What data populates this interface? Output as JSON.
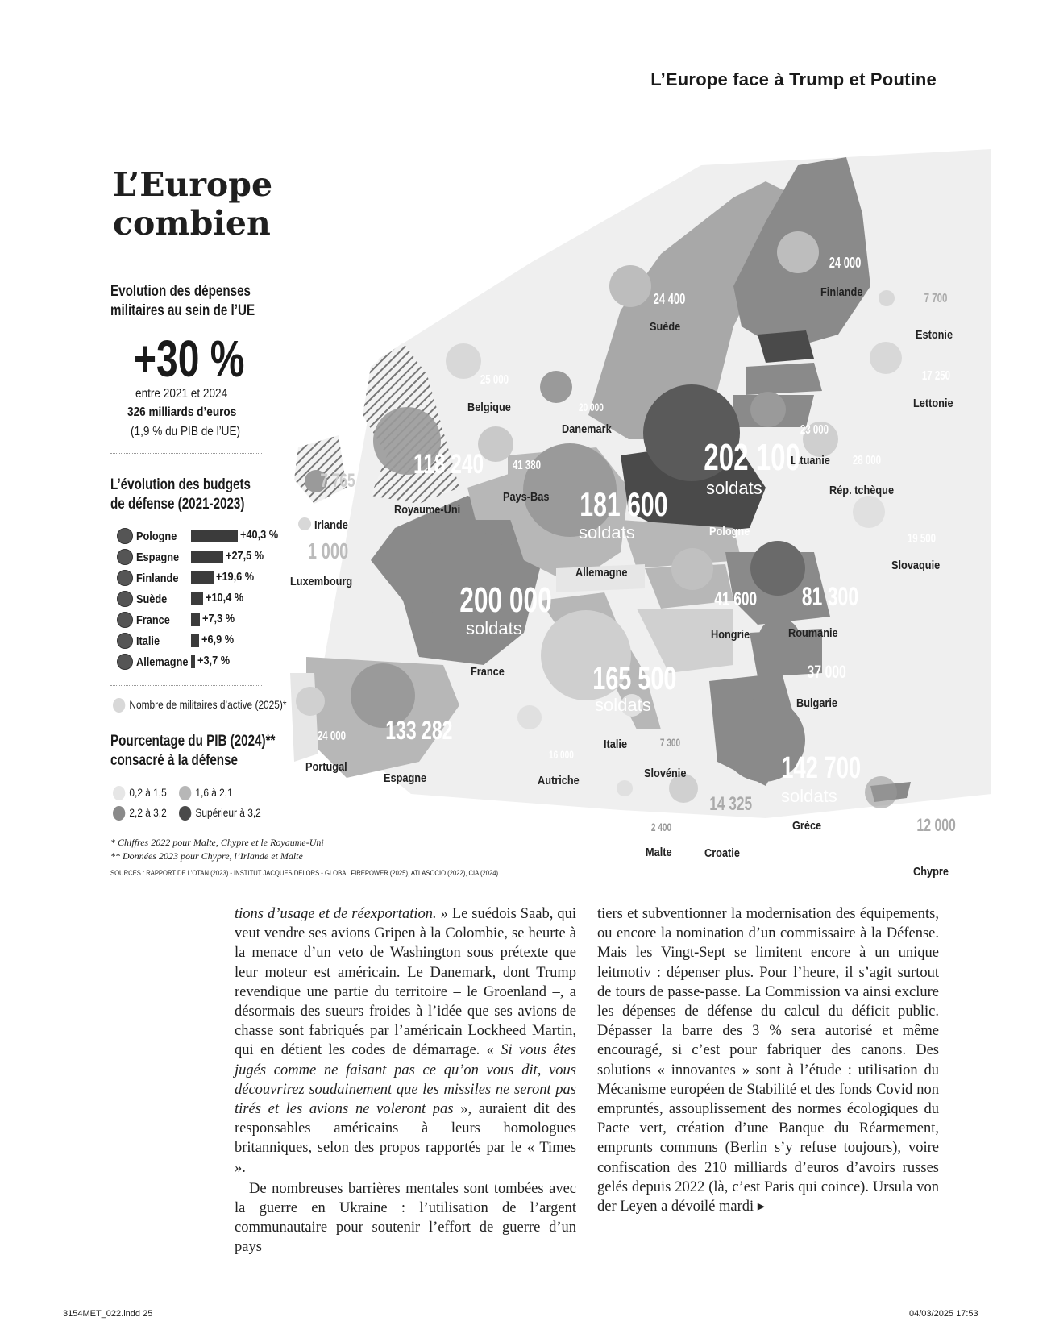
{
  "header": {
    "section": "L’Europe face à Trump et Poutine"
  },
  "title": {
    "line1": "L’Europe de la défense,",
    "line2": "combien de divisions ?"
  },
  "spending": {
    "heading1": "Evolution des dépenses",
    "heading2": "militaires au sein de l’UE",
    "big": "+30 %",
    "period": "entre 2021 et 2024",
    "amount": "326 milliards d’euros",
    "share": "(1,9 % du PIB de l’UE)"
  },
  "budgets": {
    "heading1": "L’évolution des budgets",
    "heading2": "de défense (2021-2023)",
    "rows": [
      {
        "country": "Pologne",
        "value": "+40,3 %",
        "pct": 40.3
      },
      {
        "country": "Espagne",
        "value": "+27,5 %",
        "pct": 27.5
      },
      {
        "country": "Finlande",
        "value": "+19,6 %",
        "pct": 19.6
      },
      {
        "country": "Suède",
        "value": "+10,4 %",
        "pct": 10.4
      },
      {
        "country": "France",
        "value": "+7,3 %",
        "pct": 7.3
      },
      {
        "country": "Italie",
        "value": "+6,9 %",
        "pct": 6.9
      },
      {
        "country": "Allemagne",
        "value": "+3,7 %",
        "pct": 3.7
      }
    ]
  },
  "legend": {
    "active_military": "Nombre de militaires d’active (2025)*",
    "gdp_heading1": "Pourcentage du PIB (2024)**",
    "gdp_heading2": "consacré à la défense",
    "gdp_classes": [
      {
        "label": "0,2 à 1,5",
        "color": "#e6e6e6"
      },
      {
        "label": "1,6 à 2,1",
        "color": "#b7b7b7"
      },
      {
        "label": "2,2 à 3,2",
        "color": "#8a8a8a"
      },
      {
        "label": "Supérieur à 3,2",
        "color": "#4a4a4a"
      }
    ]
  },
  "notes": {
    "n1": "*     Chiffres 2022 pour Malte, Chypre et le Royaume-Uni",
    "n2": "**   Données 2023 pour Chypre, l’Irlande et Malte",
    "sources": "SOURCES : RAPPORT DE L’OTAN (2023) - INSTITUT JACQUES DELORS - GLOBAL FIREPOWER (2025), ATLASOCIO (2022), CIA (2024)"
  },
  "map": {
    "soldats_label": "soldats",
    "countries": [
      {
        "name": "Finlande",
        "value": "24 000"
      },
      {
        "name": "Suède",
        "value": "24 400"
      },
      {
        "name": "Estonie",
        "value": "7 700"
      },
      {
        "name": "Lettonie",
        "value": "17 250"
      },
      {
        "name": "Belgique",
        "value": "25 000"
      },
      {
        "name": "Danemark",
        "value": "20 000"
      },
      {
        "name": "Lituanie",
        "value": "23 000"
      },
      {
        "name": "Rép. tchèque",
        "value": "28 000"
      },
      {
        "name": "Royaume-Uni",
        "value": "118 240"
      },
      {
        "name": "Irlande",
        "value": "7 765"
      },
      {
        "name": "Pays-Bas",
        "value": "41 380"
      },
      {
        "name": "Allemagne",
        "value": "181 600"
      },
      {
        "name": "Pologne",
        "value": "202 100"
      },
      {
        "name": "Slovaquie",
        "value": "19 500"
      },
      {
        "name": "Luxembourg",
        "value": "1 000"
      },
      {
        "name": "France",
        "value": "200 000"
      },
      {
        "name": "Hongrie",
        "value": "41 600"
      },
      {
        "name": "Roumanie",
        "value": "81 300"
      },
      {
        "name": "Bulgarie",
        "value": "37 000"
      },
      {
        "name": "Italie",
        "value": "165 500"
      },
      {
        "name": "Portugal",
        "value": "24 000"
      },
      {
        "name": "Espagne",
        "value": "133 282"
      },
      {
        "name": "Autriche",
        "value": "16 000"
      },
      {
        "name": "Slovénie",
        "value": "7 300"
      },
      {
        "name": "Grèce",
        "value": "142 700"
      },
      {
        "name": "Croatie",
        "value": "14 325"
      },
      {
        "name": "Malte",
        "value": "2 400"
      },
      {
        "name": "Chypre",
        "value": "12 000"
      }
    ]
  },
  "article": {
    "col1": {
      "p1_italic_start": "tions d’usage et de réexportation.",
      "p1_a": " » Le suédois Saab, qui veut vendre ses avions Gripen à la Colombie, se heurte à la menace d’un veto de Washington sous prétexte que leur moteur est américain. Le Danemark, dont Trump revendique une partie du territoire – le Groenland –, a désormais des sueurs froides à l’idée que ses avions de chasse sont fabriqués par l’américain Lockheed Martin, qui en détient les codes de démarrage. « ",
      "p1_italic": "Si vous êtes jugés comme ne faisant pas ce qu’on vous dit, vous découvrirez soudainement que les missiles ne seront pas tirés et les avions ne voleront pas",
      "p1_b": " », auraient dit des responsables américains à leurs homologues britanniques, selon des propos rapportés par le « Times ».",
      "p2": "De nombreuses barrières mentales sont tombées avec la guerre en Ukraine : l’utilisation de l’argent communautaire pour soutenir l’effort de guerre d’un pays"
    },
    "col2": {
      "p1": "tiers et subventionner la modernisation des équipements, ou encore la nomination d’un commissaire à la Défense. Mais les Vingt-Sept se limitent encore à un unique leitmotiv : dépenser plus. Pour l’heure, il s’agit surtout de tours de passe-passe. La Commission va ainsi exclure les dépenses de défense du calcul du déficit public. Dépasser la barre des 3 % sera autorisé et même encouragé, si c’est pour fabriquer des canons. Des solutions « innovantes » sont à l’étude : utilisation du Mécanisme européen de Stabilité et des fonds Covid non empruntés, assouplissement des normes écologiques du Pacte vert, création d’une Banque du Réarmement, emprunts communs (Berlin s’y refuse toujours), voire confiscation des 210 milliards d’euros d’avoirs russes gelés depuis 2022 (là, c’est Paris qui coince). Ursula von der Leyen a dévoilé mardi ▸"
    }
  },
  "footer": {
    "file": "3154MET_022.indd   25",
    "date": "04/03/2025   17:53"
  }
}
